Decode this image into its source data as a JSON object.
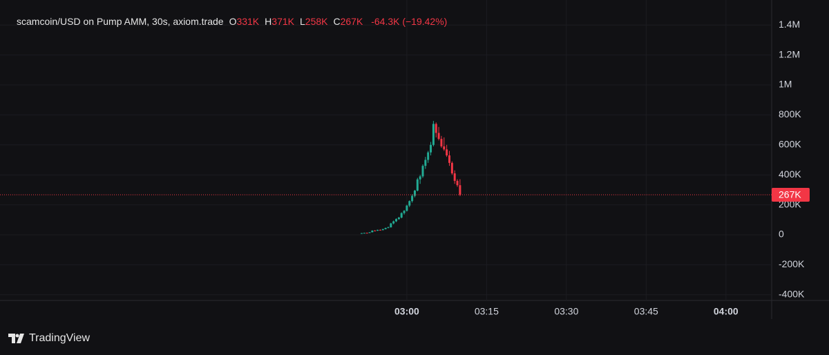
{
  "chart_data": {
    "type": "candlestick",
    "title": "scamcoin/USD on Pump AMM, 30s, axiom.trade",
    "ohlc": [
      {
        "key": "O",
        "text": "331K"
      },
      {
        "key": "H",
        "text": "371K"
      },
      {
        "key": "L",
        "text": "258K"
      },
      {
        "key": "C",
        "text": "267K"
      }
    ],
    "change": "-64.3K (−19.42%)",
    "up_color": "#22ab94",
    "down_color": "#f23645",
    "x": [
      171.5,
      172,
      172.5,
      173,
      173.5,
      174,
      174.5,
      175,
      175.5,
      176,
      176.5,
      177,
      177.5,
      178,
      178.5,
      179,
      179.5,
      180,
      180.5,
      181,
      181.5,
      182,
      182.5,
      183,
      183.5,
      184,
      184.5,
      185,
      185.5,
      186,
      186.5,
      187,
      187.5,
      188,
      188.5,
      189,
      189.5,
      190
    ],
    "open": [
      10000,
      11000,
      13000,
      12000,
      17000,
      28000,
      27000,
      33000,
      31000,
      38000,
      46000,
      50000,
      76000,
      90000,
      105000,
      115000,
      145000,
      160000,
      195000,
      225000,
      260000,
      295000,
      370000,
      390000,
      460000,
      500000,
      550000,
      600000,
      740000,
      680000,
      640000,
      590000,
      570000,
      530000,
      480000,
      410000,
      360000,
      331000
    ],
    "high": [
      12000,
      14000,
      15000,
      18000,
      30000,
      32000,
      34000,
      36000,
      40000,
      48000,
      55000,
      80000,
      95000,
      110000,
      120000,
      150000,
      165000,
      200000,
      230000,
      270000,
      300000,
      380000,
      400000,
      470000,
      520000,
      560000,
      620000,
      760000,
      750000,
      720000,
      660000,
      650000,
      600000,
      560000,
      490000,
      430000,
      371000,
      371000
    ],
    "low": [
      9000,
      10000,
      12000,
      12000,
      16000,
      25000,
      26000,
      30000,
      30000,
      36000,
      44000,
      48000,
      70000,
      85000,
      100000,
      110000,
      135000,
      155000,
      185000,
      215000,
      250000,
      290000,
      340000,
      380000,
      440000,
      480000,
      530000,
      590000,
      650000,
      630000,
      580000,
      560000,
      520000,
      460000,
      400000,
      340000,
      320000,
      258000
    ],
    "close": [
      11000,
      13000,
      12000,
      17000,
      28000,
      27000,
      33000,
      31000,
      38000,
      46000,
      50000,
      76000,
      90000,
      105000,
      115000,
      145000,
      160000,
      195000,
      225000,
      260000,
      295000,
      370000,
      390000,
      460000,
      500000,
      550000,
      600000,
      740000,
      680000,
      640000,
      590000,
      570000,
      530000,
      480000,
      410000,
      360000,
      331000,
      267000
    ],
    "xlim": [
      103.5,
      248.6
    ],
    "xticks": [
      {
        "value": 180,
        "label": "03:00",
        "bold": true
      },
      {
        "value": 195,
        "label": "03:15"
      },
      {
        "value": 210,
        "label": "03:30"
      },
      {
        "value": 225,
        "label": "03:45"
      },
      {
        "value": 240,
        "label": "04:00",
        "bold": true
      }
    ],
    "ylim": [
      -438000,
      1567000
    ],
    "yticks": [
      {
        "value": 1400000,
        "label": "1.4M"
      },
      {
        "value": 1200000,
        "label": "1.2M"
      },
      {
        "value": 1000000,
        "label": "1M"
      },
      {
        "value": 800000,
        "label": "800K"
      },
      {
        "value": 600000,
        "label": "600K"
      },
      {
        "value": 400000,
        "label": "400K"
      },
      {
        "value": 200000,
        "label": "200K"
      },
      0,
      {
        "value": -200000,
        "label": "-200K"
      },
      {
        "value": -400000,
        "label": "-400K"
      }
    ],
    "last_price": {
      "value": 267000,
      "label": "267K"
    },
    "grid": true,
    "brand": "TradingView"
  }
}
